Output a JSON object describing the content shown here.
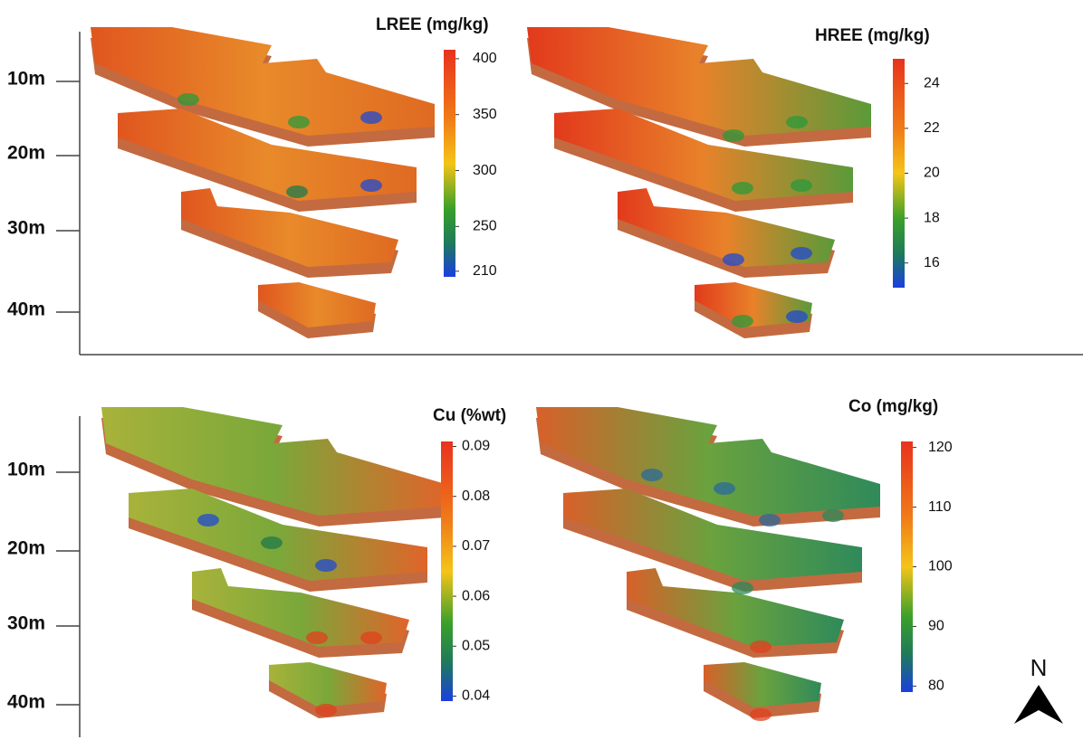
{
  "panels": [
    {
      "title": "LREE (mg/kg)",
      "colorbar": {
        "lim": [
          205,
          408
        ],
        "ticks": [
          210,
          250,
          300,
          350,
          400
        ]
      }
    },
    {
      "title": "HREE (mg/kg)",
      "colorbar": {
        "lim": [
          14.9,
          25.1
        ],
        "ticks": [
          16,
          18,
          20,
          22,
          24
        ]
      }
    },
    {
      "title": "Cu (%wt)",
      "colorbar": {
        "lim": [
          0.039,
          0.091
        ],
        "ticks": [
          0.04,
          0.05,
          0.06,
          0.07,
          0.08,
          0.09
        ]
      }
    },
    {
      "title": "Co (mg/kg)",
      "colorbar": {
        "lim": [
          79,
          121
        ],
        "ticks": [
          80,
          90,
          100,
          110,
          120
        ]
      }
    }
  ],
  "depth_labels": [
    "10m",
    "20m",
    "30m",
    "40m"
  ],
  "north": "N"
}
